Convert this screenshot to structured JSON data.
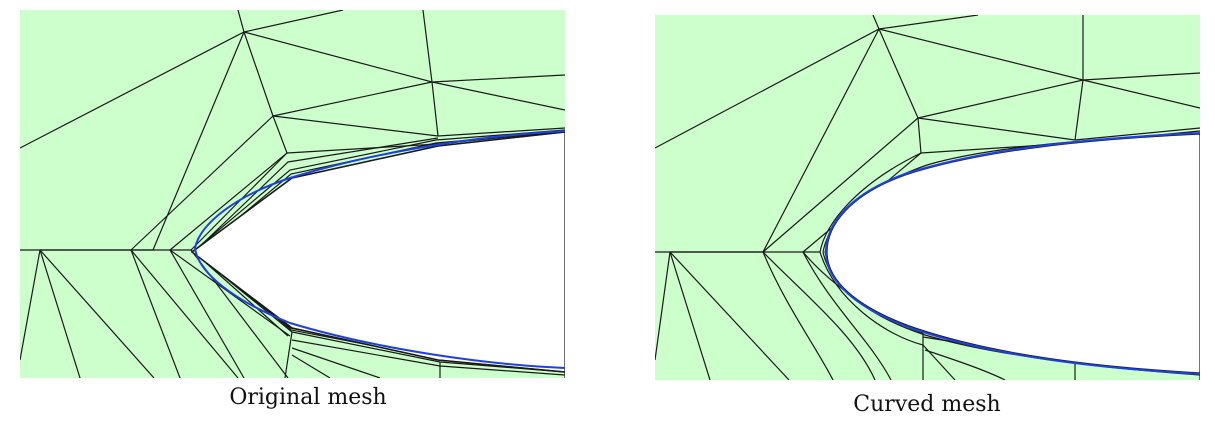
{
  "figure": {
    "panels": [
      {
        "caption": "Original mesh"
      },
      {
        "caption": "Curved mesh"
      }
    ],
    "colors": {
      "domain_fill": "#ccffcc",
      "mesh_edge": "#1a1a1a",
      "boundary_curve": "#1e40e0",
      "hole": "#ffffff"
    }
  }
}
